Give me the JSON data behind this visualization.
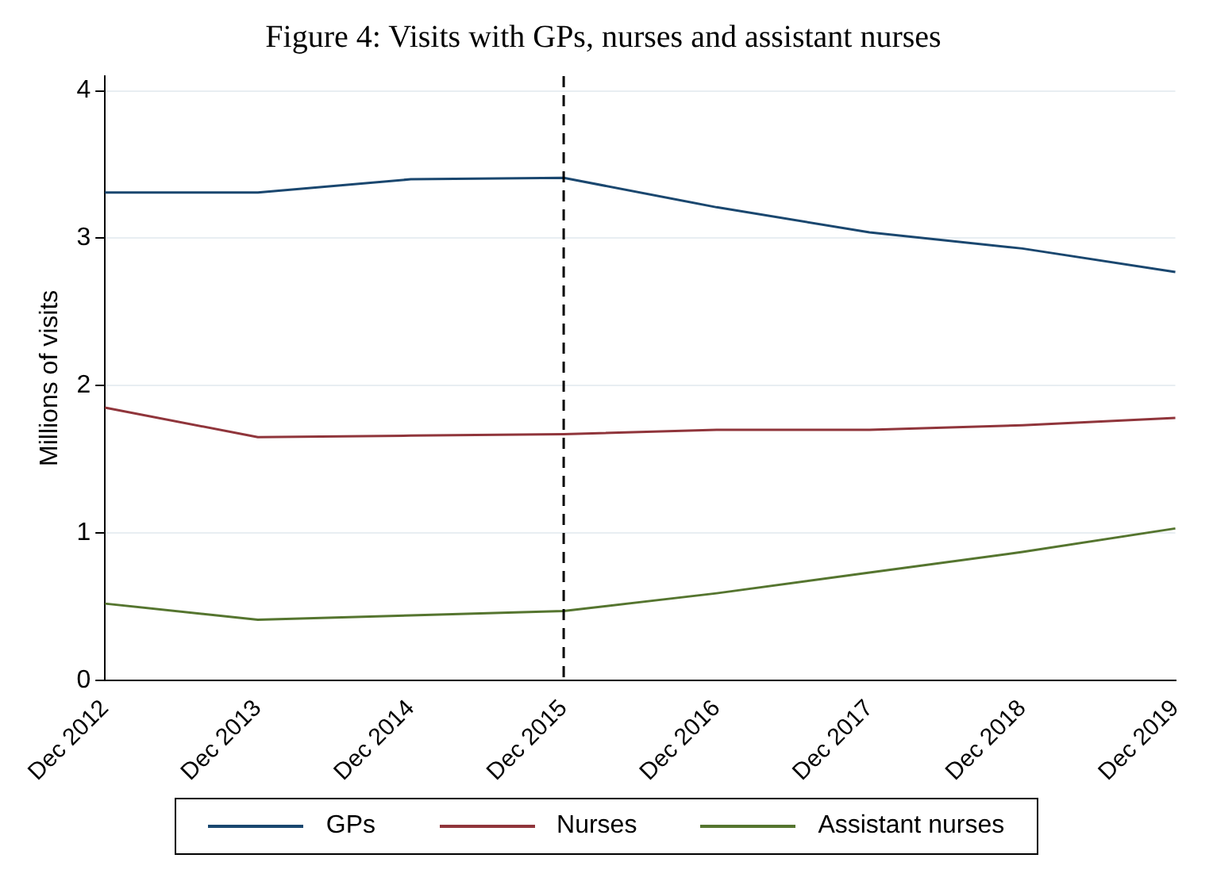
{
  "chart_data": {
    "type": "line",
    "title": "Figure 4: Visits with GPs, nurses and assistant nurses",
    "ylabel": "Millions of visits",
    "categories": [
      "Dec 2012",
      "Dec 2013",
      "Dec 2014",
      "Dec 2015",
      "Dec 2016",
      "Dec 2017",
      "Dec 2018",
      "Dec 2019"
    ],
    "series": [
      {
        "name": "GPs",
        "color": "#1a476f",
        "values": [
          3.31,
          3.31,
          3.4,
          3.41,
          3.21,
          3.04,
          2.93,
          2.77
        ]
      },
      {
        "name": "Nurses",
        "color": "#90353b",
        "values": [
          1.85,
          1.65,
          1.66,
          1.67,
          1.7,
          1.7,
          1.73,
          1.78
        ]
      },
      {
        "name": "Assistant nurses",
        "color": "#55752f",
        "values": [
          0.52,
          0.41,
          0.44,
          0.47,
          0.59,
          0.73,
          0.87,
          1.03
        ]
      }
    ],
    "ylim": [
      0,
      4.1
    ],
    "yticks": [
      0,
      1,
      2,
      3,
      4
    ],
    "grid": "y",
    "legend": "bottom",
    "marker": "none",
    "line_style": "solid",
    "ref_lines": [
      {
        "axis": "x",
        "value": "Dec 2015",
        "line_style": "dashed",
        "color": "#000000"
      }
    ]
  }
}
